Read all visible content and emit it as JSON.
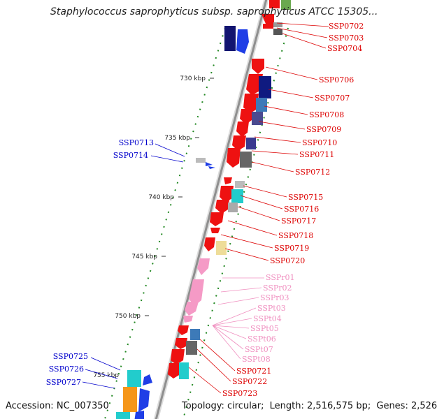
{
  "title": "Staphylococcus saprophyticus subsp. saprophyticus ATCC 15305...",
  "accession": {
    "label": "Accession:",
    "value": "NC_007350"
  },
  "topology": {
    "label": "Topology:",
    "value": "circular"
  },
  "length": {
    "label": "Length:",
    "value": "2,516,575 bp"
  },
  "genes": {
    "label": "Genes:",
    "value": "2,526"
  },
  "colors": {
    "backbone": "#8f8f8f",
    "forward_label": "#dd0000",
    "reverse_label": "#0000cc",
    "rna_label": "#f090c0",
    "gc_skew": "#228822"
  },
  "kbp_ticks": [
    "730 kbp",
    "735 kbp",
    "740 kbp",
    "745 kbp",
    "750 kbp",
    "755 kbp"
  ],
  "forward_labels": [
    "SSP0702",
    "SSP0703",
    "SSP0704",
    "SSP0706",
    "SSP0707",
    "SSP0708",
    "SSP0709",
    "SSP0710",
    "SSP0711",
    "SSP0712",
    "SSP0715",
    "SSP0716",
    "SSP0717",
    "SSP0718",
    "SSP0719",
    "SSP0720",
    "SSP0721",
    "SSP0722",
    "SSP0723"
  ],
  "rna_labels": [
    "SSPr01",
    "SSPr02",
    "SSPr03",
    "SSPt03",
    "SSPt04",
    "SSPt05",
    "SSPt06",
    "SSPt07",
    "SSPt08"
  ],
  "reverse_labels": [
    "SSP0713",
    "SSP0714",
    "SSP0725",
    "SSP0726",
    "SSP0727"
  ]
}
